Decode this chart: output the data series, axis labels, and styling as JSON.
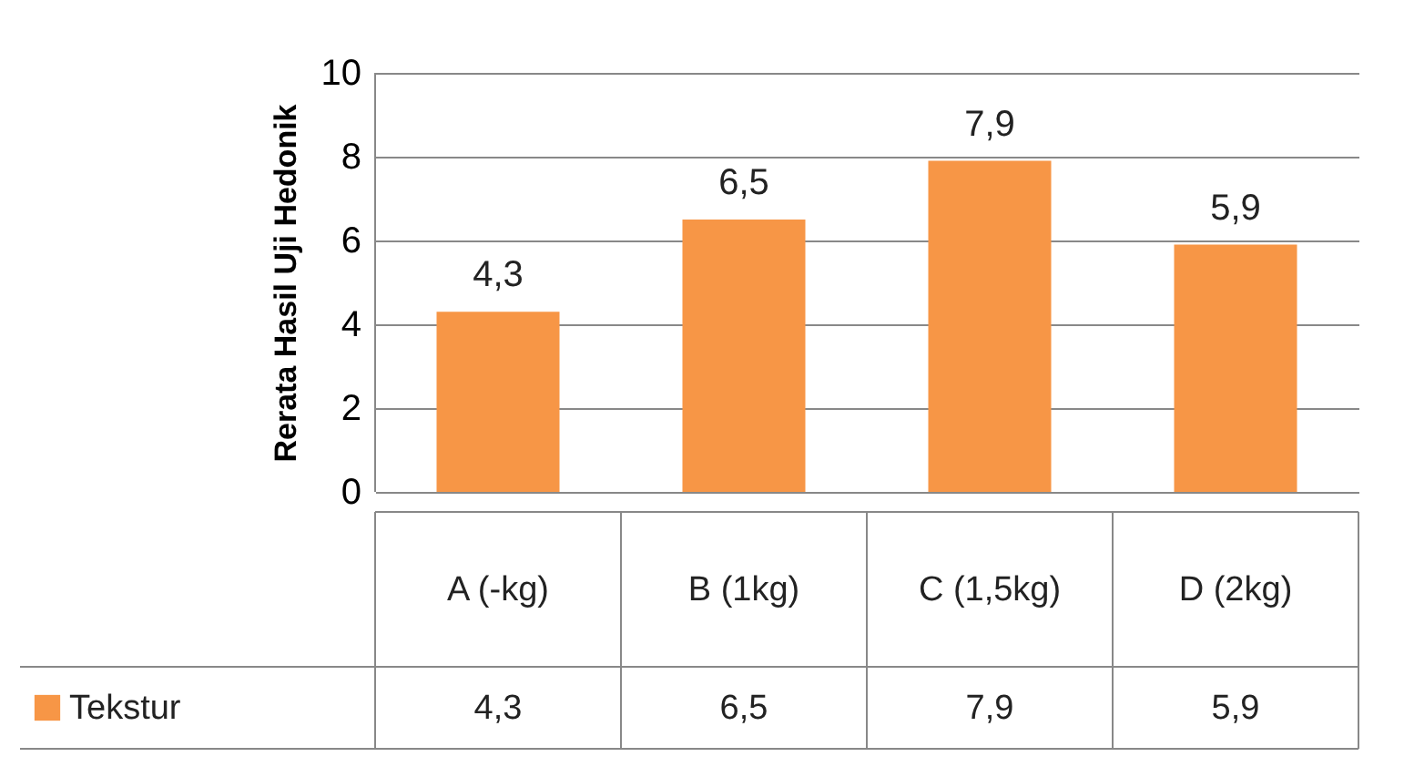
{
  "chart_data": {
    "type": "bar",
    "ylabel": "Rerata Hasil Uji Hedonik",
    "categories": [
      "A (-kg)",
      "B (1kg)",
      "C (1,5kg)",
      "D (2kg)"
    ],
    "series": [
      {
        "name": "Tekstur",
        "color": "#f79646",
        "values": [
          4.3,
          6.5,
          7.9,
          5.9
        ],
        "value_labels": [
          "4,3",
          "6,5",
          "7,9",
          "5,9"
        ]
      }
    ],
    "ylim": [
      0,
      10
    ],
    "yticks": [
      0,
      2,
      4,
      6,
      8,
      10
    ],
    "grid": "y",
    "legend": "bottom left"
  }
}
